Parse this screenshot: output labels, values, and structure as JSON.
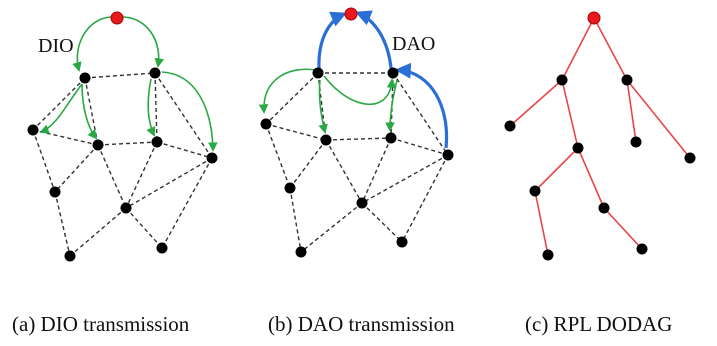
{
  "panels": [
    {
      "caption": "(a) DIO transmission",
      "arrow_label": "DIO",
      "arrow_color": "#2aa845"
    },
    {
      "caption": "(b) DAO transmission",
      "arrow_label": "DAO",
      "arrow_color": "#2a6fd6"
    },
    {
      "caption": "(c) RPL DODAG"
    }
  ],
  "colors": {
    "root_node": "#e8191c",
    "node": "#000000",
    "mesh_link": "#333333",
    "tree_link": "#e8474a",
    "dio_arrow": "#2aa845",
    "dao_arrow": "#2a6fd6"
  }
}
